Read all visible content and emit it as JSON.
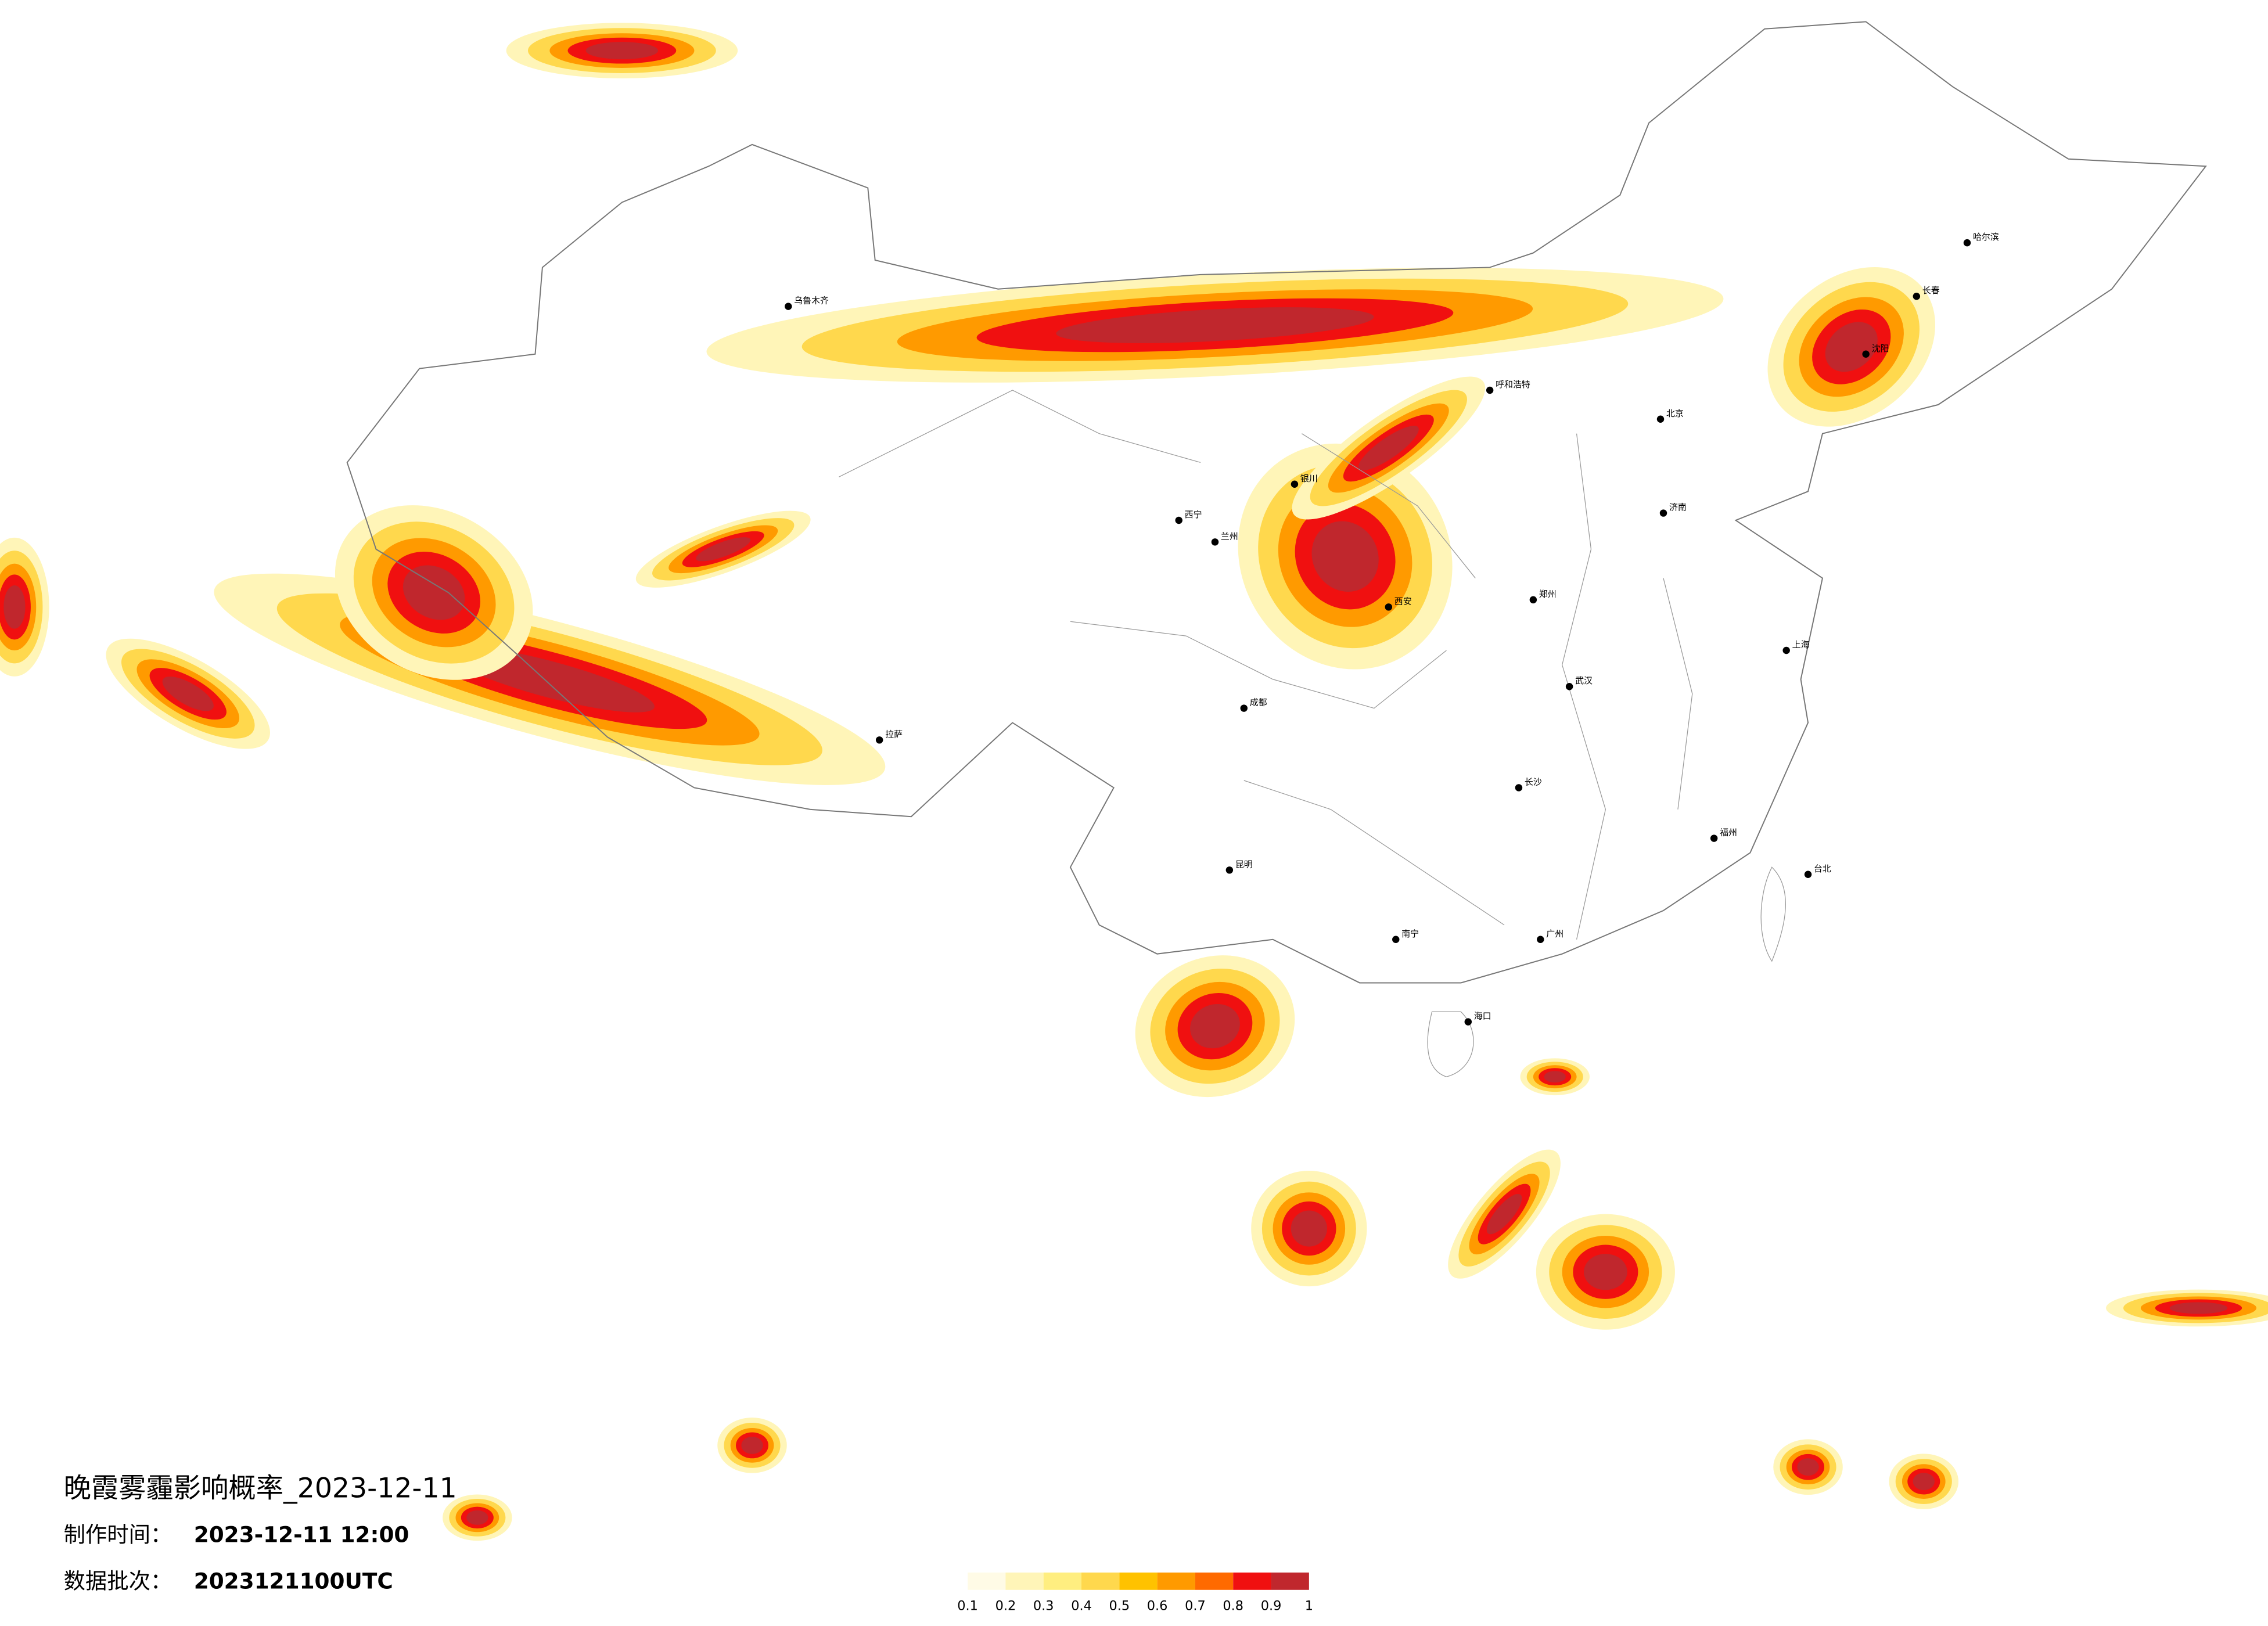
{
  "map": {
    "title": "晚霞雾霾影响概率_2023-12-11",
    "made_label": "制作时间：",
    "made_time": "2023-12-11 12:00",
    "batch_label": "数据批次：",
    "batch": "2023121100UTC",
    "cities": [
      "北京",
      "上海",
      "广州",
      "成都",
      "西安",
      "乌鲁木齐",
      "拉萨",
      "哈尔滨",
      "长沙",
      "武汉",
      "昆明",
      "南宁",
      "福州",
      "呼和浩特",
      "兰州",
      "西宁",
      "银川",
      "郑州",
      "济南",
      "沈阳",
      "长春",
      "海口",
      "台北"
    ],
    "legend": {
      "colors": [
        "#fffbe6",
        "#fff5b8",
        "#ffee80",
        "#ffd84d",
        "#ffc200",
        "#ff9a00",
        "#ff6a00",
        "#f01010",
        "#c0272d"
      ],
      "ticks": [
        0.1,
        0.2,
        0.3,
        0.4,
        0.5,
        0.6,
        0.7,
        0.8,
        0.9,
        1
      ]
    }
  }
}
